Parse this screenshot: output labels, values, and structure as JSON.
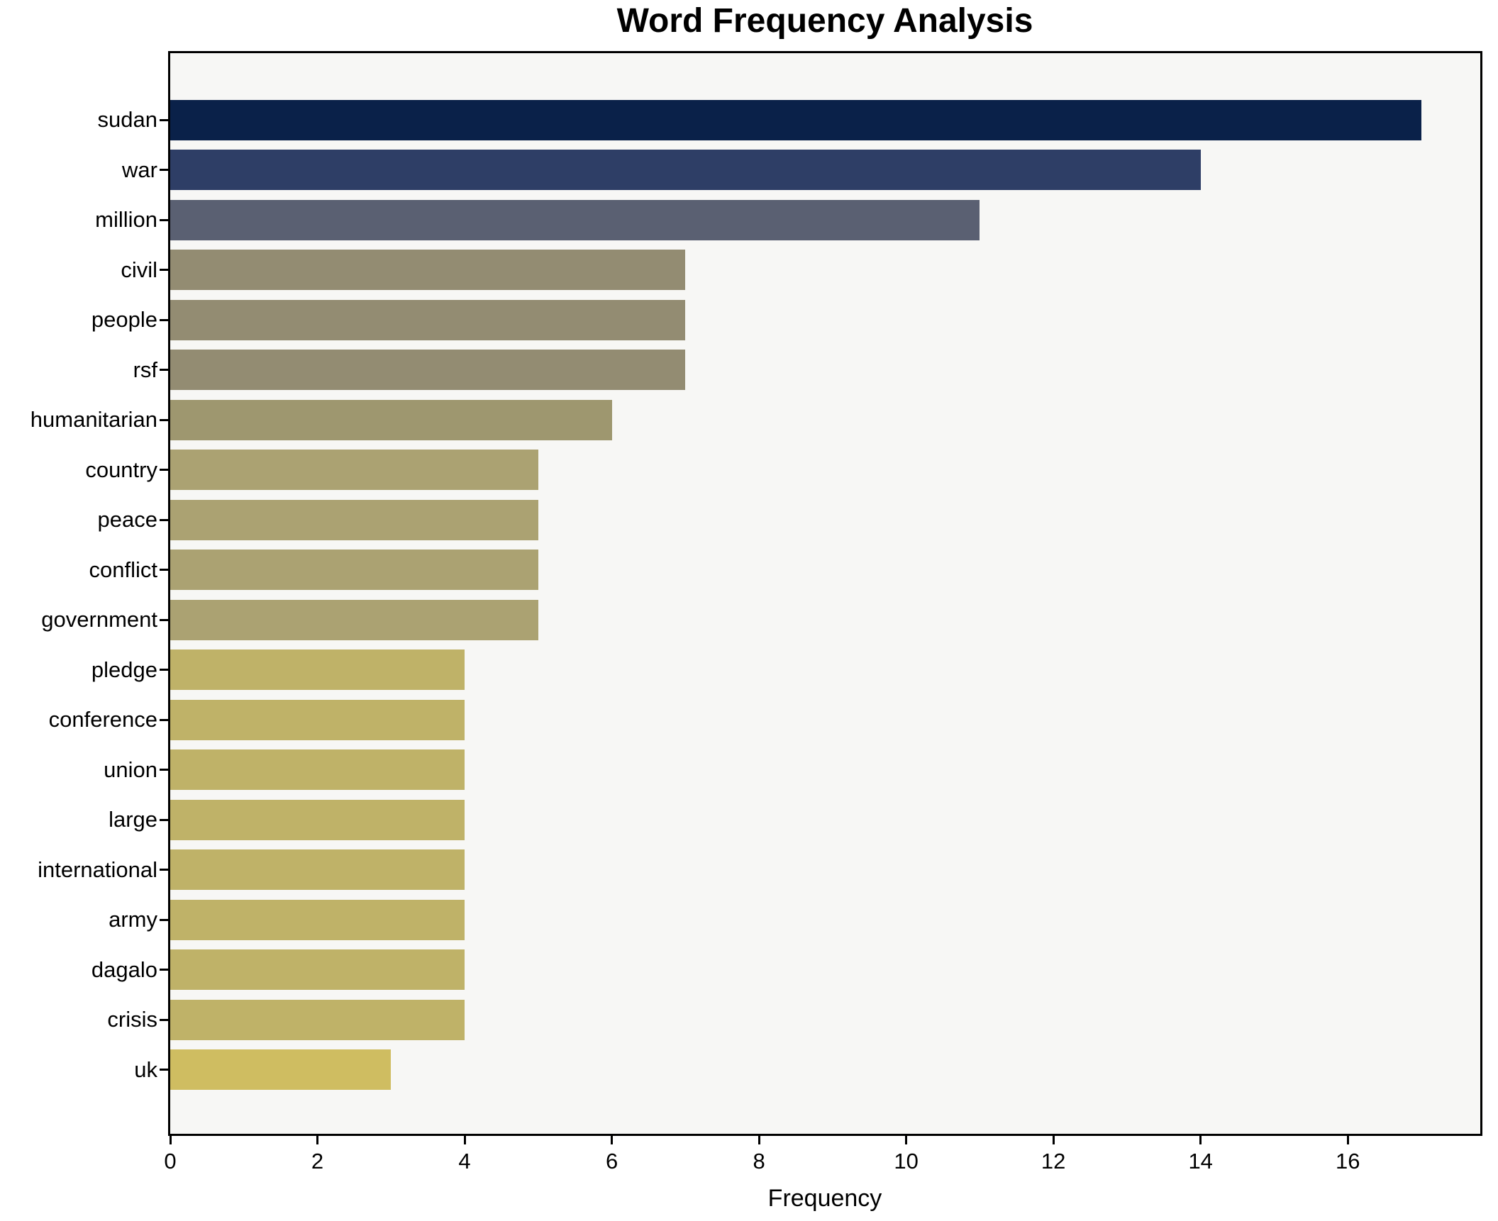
{
  "title": "Word Frequency Analysis",
  "chart_data": {
    "type": "bar",
    "orientation": "horizontal",
    "title": "Word Frequency Analysis",
    "xlabel": "Frequency",
    "ylabel": "",
    "categories": [
      "sudan",
      "war",
      "million",
      "civil",
      "people",
      "rsf",
      "humanitarian",
      "country",
      "peace",
      "conflict",
      "government",
      "pledge",
      "conference",
      "union",
      "large",
      "international",
      "army",
      "dagalo",
      "crisis",
      "uk"
    ],
    "values": [
      17,
      14,
      11,
      7,
      7,
      7,
      6,
      5,
      5,
      5,
      5,
      4,
      4,
      4,
      4,
      4,
      4,
      4,
      4,
      3
    ],
    "bar_colors": [
      "#0a2149",
      "#2e3e66",
      "#5a6072",
      "#938c72",
      "#938c72",
      "#938c72",
      "#9e976f",
      "#aba272",
      "#aba272",
      "#aba272",
      "#aba272",
      "#bfb268",
      "#bfb268",
      "#bfb268",
      "#bfb268",
      "#bfb268",
      "#bfb268",
      "#bfb268",
      "#bfb268",
      "#cfbd61"
    ],
    "xlim": [
      0,
      17.8
    ],
    "xticks": [
      0,
      2,
      4,
      6,
      8,
      10,
      12,
      14,
      16
    ],
    "grid": false,
    "legend": "none",
    "plot_background": "#f7f7f5",
    "page_background": "#ffffff",
    "axis_color": "#000000",
    "text_color": "#000000"
  }
}
